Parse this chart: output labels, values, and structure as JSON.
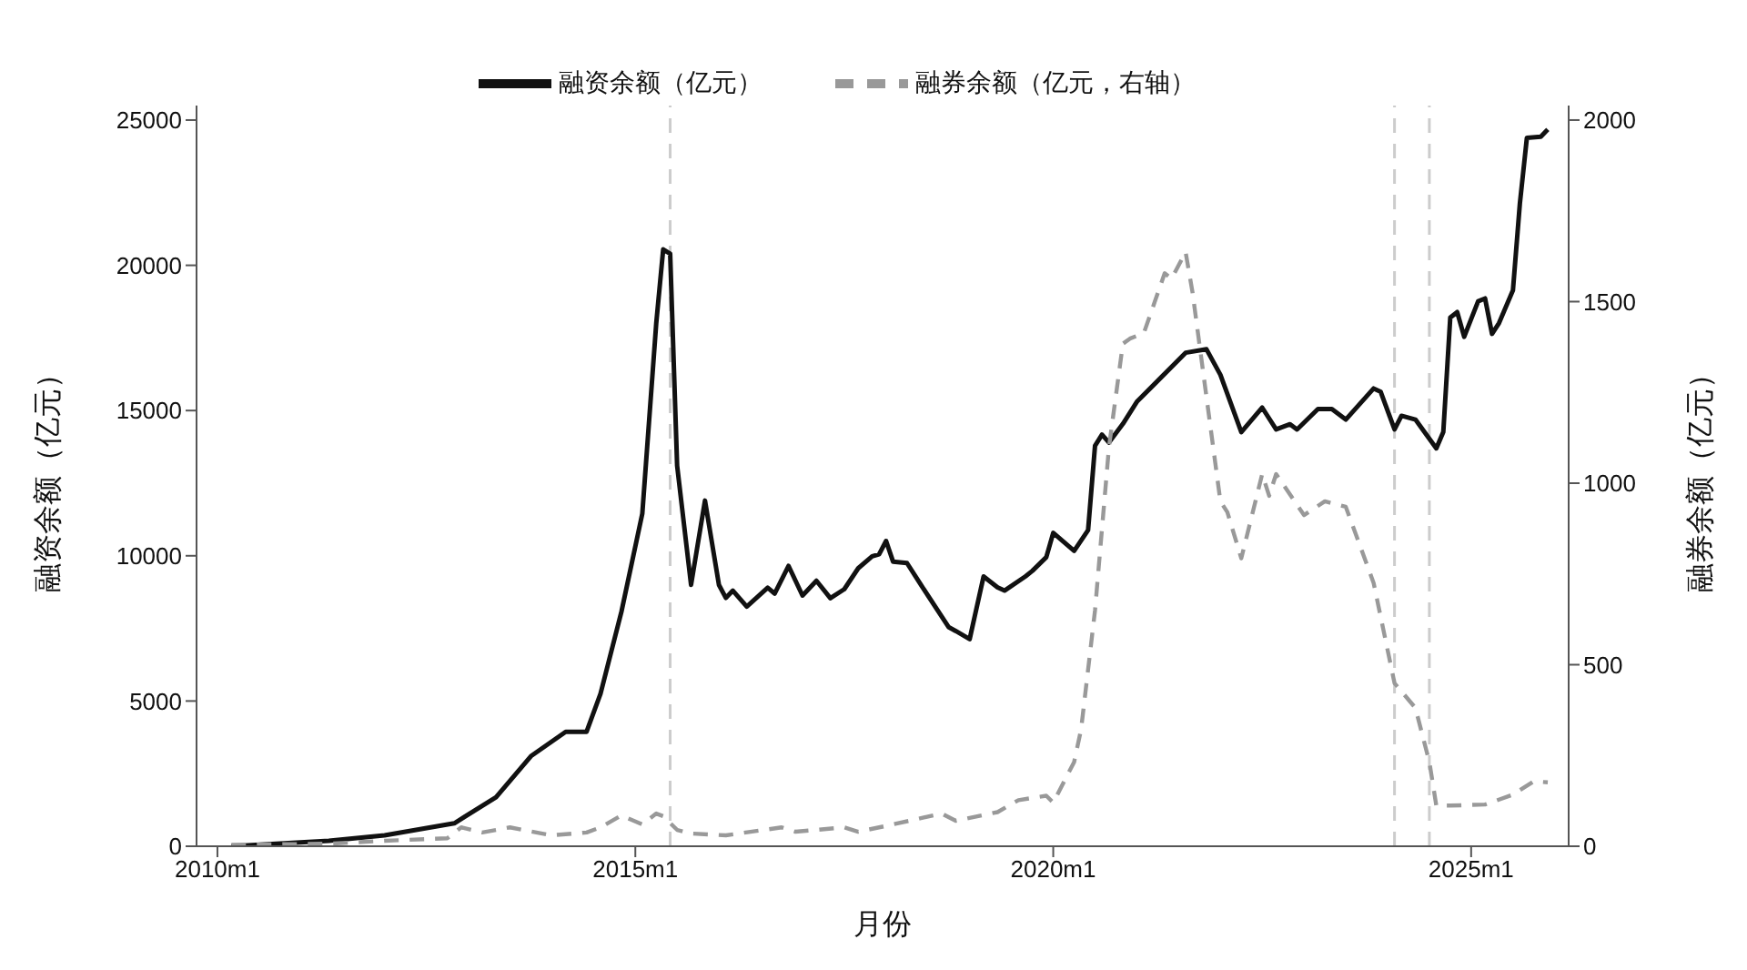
{
  "chart_data": {
    "type": "line",
    "xlabel": "月份",
    "ylabel": "融资余额（亿元）",
    "y2label": "融券余额（亿元）",
    "xlim": [
      "2009-10",
      "2026-03"
    ],
    "xticks": [
      {
        "value": "2010-01",
        "label": "2010m1"
      },
      {
        "value": "2015-01",
        "label": "2015m1"
      },
      {
        "value": "2020-01",
        "label": "2020m1"
      },
      {
        "value": "2025-01",
        "label": "2025m1"
      }
    ],
    "ylim": [
      0,
      25500
    ],
    "yticks": [
      0,
      5000,
      10000,
      15000,
      20000,
      25000
    ],
    "y2lim": [
      0,
      2040
    ],
    "y2ticks": [
      0,
      500,
      1000,
      1500,
      2000
    ],
    "legend": "top",
    "ref_lines": [
      {
        "axis": "x",
        "value": "2015-06",
        "color": "#cccccc",
        "line_style": "dashed"
      },
      {
        "axis": "x",
        "value": "2024-02",
        "color": "#cccccc",
        "line_style": "dashed"
      },
      {
        "axis": "x",
        "value": "2024-07",
        "color": "#cccccc",
        "line_style": "dashed"
      }
    ],
    "series": [
      {
        "name": "融资余额（亿元）",
        "color": "#111111",
        "line_style": "solid",
        "x": [
          "2010-03",
          "2011-05",
          "2012-01",
          "2012-11",
          "2013-05",
          "2013-10",
          "2014-03",
          "2014-06",
          "2014-08",
          "2014-11",
          "2015-02",
          "2015-04",
          "2015-05",
          "2015-06",
          "2015-07",
          "2015-09",
          "2015-11",
          "2016-01",
          "2016-02",
          "2016-03",
          "2016-05",
          "2016-08",
          "2016-09",
          "2016-11",
          "2017-01",
          "2017-03",
          "2017-05",
          "2017-07",
          "2017-09",
          "2017-11",
          "2017-12",
          "2018-01",
          "2018-02",
          "2018-04",
          "2018-06",
          "2018-10",
          "2018-11",
          "2019-01",
          "2019-03",
          "2019-05",
          "2019-06",
          "2019-09",
          "2019-10",
          "2019-12",
          "2020-01",
          "2020-04",
          "2020-06",
          "2020-07",
          "2020-08",
          "2020-09",
          "2020-11",
          "2021-01",
          "2021-08",
          "2021-11",
          "2022-01",
          "2022-04",
          "2022-07",
          "2022-09",
          "2022-11",
          "2022-12",
          "2023-03",
          "2023-05",
          "2023-07",
          "2023-11",
          "2023-12",
          "2024-02",
          "2024-03",
          "2024-05",
          "2024-08",
          "2024-09",
          "2024-10",
          "2024-11",
          "2024-12",
          "2025-02",
          "2025-03",
          "2025-04",
          "2025-05",
          "2025-07",
          "2025-08",
          "2025-09",
          "2025-11",
          "2025-12"
        ],
        "values": [
          0,
          190,
          375,
          790,
          1690,
          3100,
          3940,
          3940,
          5250,
          8070,
          11450,
          18000,
          20550,
          20400,
          13100,
          9000,
          11900,
          9000,
          8550,
          8800,
          8250,
          8900,
          8700,
          9650,
          8630,
          9140,
          8540,
          8850,
          9570,
          9980,
          10050,
          10510,
          9800,
          9750,
          9000,
          7540,
          7410,
          7130,
          9290,
          8910,
          8800,
          9290,
          9480,
          9950,
          10790,
          10170,
          10880,
          13790,
          14170,
          13900,
          14540,
          15300,
          16990,
          17110,
          16230,
          14260,
          15100,
          14350,
          14530,
          14350,
          15050,
          15050,
          14690,
          15760,
          15650,
          14350,
          14820,
          14690,
          13700,
          14260,
          18200,
          18390,
          17540,
          18760,
          18860,
          17640,
          18010,
          19140,
          22140,
          24390,
          24430,
          24680
        ]
      },
      {
        "name": "融券余额（亿元，右轴）",
        "color": "#999999",
        "line_style": "dashed",
        "axis": "y2",
        "x": [
          "2010-03",
          "2011-05",
          "2012-01",
          "2012-10",
          "2012-12",
          "2013-03",
          "2013-07",
          "2014-01",
          "2014-06",
          "2014-08",
          "2014-11",
          "2015-02",
          "2015-04",
          "2015-05",
          "2015-07",
          "2015-09",
          "2016-02",
          "2016-10",
          "2016-12",
          "2017-07",
          "2017-09",
          "2018-01",
          "2018-09",
          "2018-11",
          "2019-05",
          "2019-08",
          "2019-12",
          "2020-01",
          "2020-04",
          "2020-05",
          "2020-07",
          "2020-09",
          "2020-11",
          "2020-12",
          "2021-02",
          "2021-05",
          "2021-06",
          "2021-08",
          "2021-09",
          "2022-01",
          "2022-02",
          "2022-04",
          "2022-07",
          "2022-08",
          "2022-09",
          "2023-01",
          "2023-04",
          "2023-07",
          "2023-09",
          "2023-11",
          "2024-02",
          "2024-05",
          "2024-07",
          "2024-08",
          "2024-10",
          "2025-03",
          "2025-07",
          "2025-10",
          "2025-12"
        ],
        "values": [
          4,
          7,
          15,
          22,
          52,
          38,
          52,
          30,
          38,
          52,
          85,
          60,
          90,
          83,
          45,
          35,
          30,
          52,
          40,
          52,
          40,
          56,
          90,
          70,
          94,
          127,
          139,
          120,
          232,
          322,
          650,
          1099,
          1384,
          1398,
          1413,
          1578,
          1563,
          1637,
          1525,
          950,
          920,
          793,
          1025,
          965,
          1025,
          912,
          950,
          935,
          830,
          725,
          449,
          381,
          232,
          112,
          112,
          115,
          142,
          179,
          176
        ]
      }
    ]
  }
}
